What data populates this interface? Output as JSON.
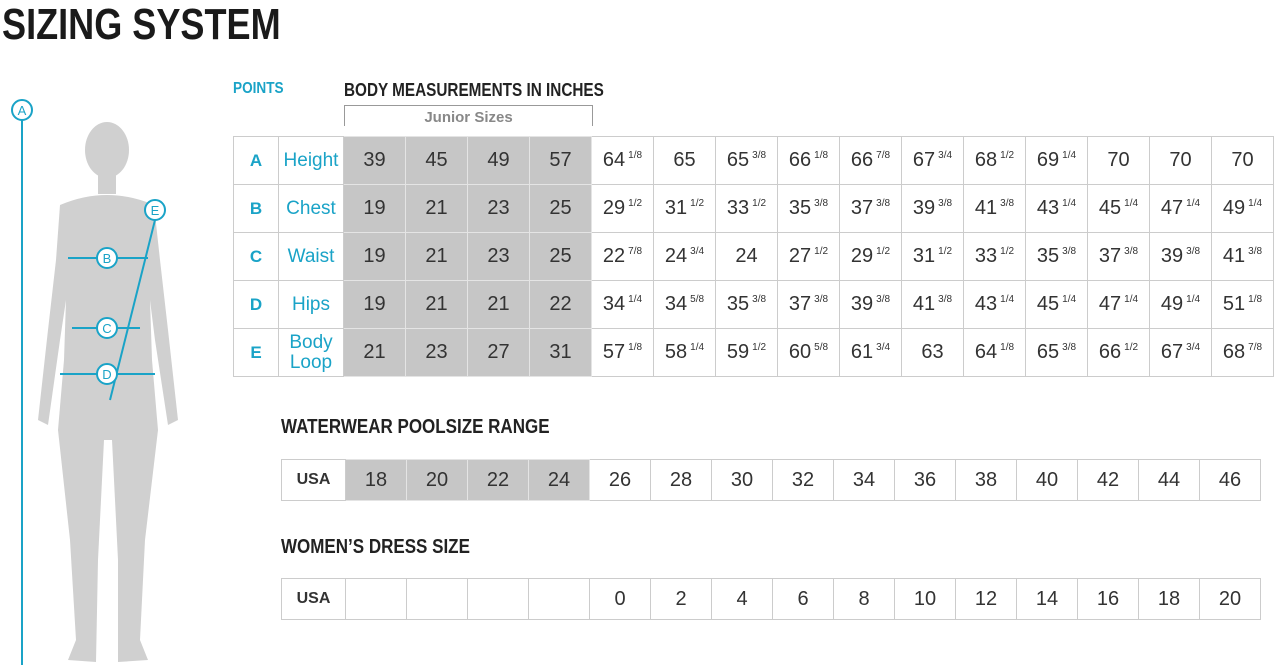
{
  "title": "SIZING SYSTEM",
  "points_label": "POINTS",
  "body_header": "BODY MEASUREMENTS IN INCHES",
  "junior_label": "Junior Sizes",
  "figure_points": [
    "A",
    "B",
    "C",
    "D",
    "E"
  ],
  "measurements": [
    {
      "point": "A",
      "name": "Height",
      "junior": [
        "39",
        "45",
        "49",
        "57"
      ],
      "values": [
        [
          "64",
          "1/8"
        ],
        [
          "65",
          ""
        ],
        [
          "65",
          "3/8"
        ],
        [
          "66",
          "1/8"
        ],
        [
          "66",
          "7/8"
        ],
        [
          "67",
          "3/4"
        ],
        [
          "68",
          "1/2"
        ],
        [
          "69",
          "1/4"
        ],
        [
          "70",
          ""
        ],
        [
          "70",
          ""
        ],
        [
          "70",
          ""
        ]
      ]
    },
    {
      "point": "B",
      "name": "Chest",
      "junior": [
        "19",
        "21",
        "23",
        "25"
      ],
      "values": [
        [
          "29",
          "1/2"
        ],
        [
          "31",
          "1/2"
        ],
        [
          "33",
          "1/2"
        ],
        [
          "35",
          "3/8"
        ],
        [
          "37",
          "3/8"
        ],
        [
          "39",
          "3/8"
        ],
        [
          "41",
          "3/8"
        ],
        [
          "43",
          "1/4"
        ],
        [
          "45",
          "1/4"
        ],
        [
          "47",
          "1/4"
        ],
        [
          "49",
          "1/4"
        ]
      ]
    },
    {
      "point": "C",
      "name": "Waist",
      "junior": [
        "19",
        "21",
        "23",
        "25"
      ],
      "values": [
        [
          "22",
          "7/8"
        ],
        [
          "24",
          "3/4"
        ],
        [
          "24",
          ""
        ],
        [
          "27",
          "1/2"
        ],
        [
          "29",
          "1/2"
        ],
        [
          "31",
          "1/2"
        ],
        [
          "33",
          "1/2"
        ],
        [
          "35",
          "3/8"
        ],
        [
          "37",
          "3/8"
        ],
        [
          "39",
          "3/8"
        ],
        [
          "41",
          "3/8"
        ]
      ]
    },
    {
      "point": "D",
      "name": "Hips",
      "junior": [
        "19",
        "21",
        "21",
        "22"
      ],
      "values": [
        [
          "34",
          "1/4"
        ],
        [
          "34",
          "5/8"
        ],
        [
          "35",
          "3/8"
        ],
        [
          "37",
          "3/8"
        ],
        [
          "39",
          "3/8"
        ],
        [
          "41",
          "3/8"
        ],
        [
          "43",
          "1/4"
        ],
        [
          "45",
          "1/4"
        ],
        [
          "47",
          "1/4"
        ],
        [
          "49",
          "1/4"
        ],
        [
          "51",
          "1/8"
        ]
      ]
    },
    {
      "point": "E",
      "name": "Body Loop",
      "junior": [
        "21",
        "23",
        "27",
        "31"
      ],
      "values": [
        [
          "57",
          "1/8"
        ],
        [
          "58",
          "1/4"
        ],
        [
          "59",
          "1/2"
        ],
        [
          "60",
          "5/8"
        ],
        [
          "61",
          "3/4"
        ],
        [
          "63",
          ""
        ],
        [
          "64",
          "1/8"
        ],
        [
          "65",
          "3/8"
        ],
        [
          "66",
          "1/2"
        ],
        [
          "67",
          "3/4"
        ],
        [
          "68",
          "7/8"
        ]
      ]
    }
  ],
  "poolsize": {
    "title": "WATERWEAR POOLSIZE RANGE",
    "label": "USA",
    "junior": [
      "18",
      "20",
      "22",
      "24"
    ],
    "values": [
      "26",
      "28",
      "30",
      "32",
      "34",
      "36",
      "38",
      "40",
      "42",
      "44",
      "46"
    ]
  },
  "dress": {
    "title": "WOMEN’S DRESS SIZE",
    "label": "USA",
    "junior": [
      "",
      "",
      "",
      ""
    ],
    "values": [
      "0",
      "2",
      "4",
      "6",
      "8",
      "10",
      "12",
      "14",
      "16",
      "18",
      "20"
    ]
  },
  "colors": {
    "accent": "#1aa3c7",
    "junior_fill": "#c6c6c6",
    "silhouette": "#cfcfcf"
  }
}
